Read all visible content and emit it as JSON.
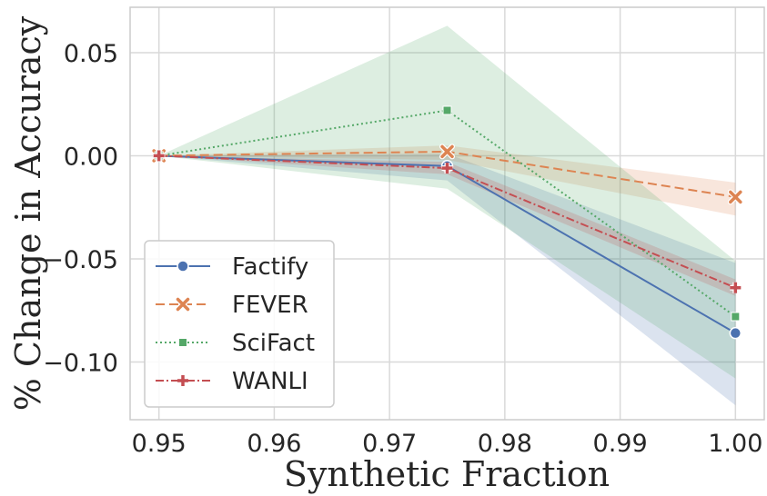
{
  "chart_data": {
    "type": "line",
    "title": "",
    "xlabel": "Synthetic Fraction",
    "ylabel": "% Change in Accuracy",
    "x": [
      0.95,
      0.975,
      1.0
    ],
    "xlim": [
      0.9475,
      1.0025
    ],
    "ylim": [
      -0.128,
      0.072
    ],
    "xticks": [
      "0.95",
      "0.96",
      "0.97",
      "0.98",
      "0.99",
      "1.00"
    ],
    "yticks": [
      "0.05",
      "0.00",
      "−0.05",
      "−0.10"
    ],
    "grid": true,
    "legend_position": "lower-left",
    "series": [
      {
        "name": "Factify",
        "color": "#4c72b0",
        "marker": "circle",
        "dash": "",
        "values": [
          0.0,
          -0.005,
          -0.086
        ],
        "band_low": [
          0.0,
          -0.012,
          -0.121
        ],
        "band_high": [
          0.0,
          0.001,
          -0.052
        ]
      },
      {
        "name": "FEVER",
        "color": "#dd8452",
        "marker": "x",
        "dash": "10,5",
        "values": [
          0.0,
          0.002,
          -0.02
        ],
        "band_low": [
          0.0,
          -0.002,
          -0.029
        ],
        "band_high": [
          0.0,
          0.005,
          -0.013
        ]
      },
      {
        "name": "SciFact",
        "color": "#55a868",
        "marker": "square",
        "dash": "2,3",
        "values": [
          0.0,
          0.022,
          -0.078
        ],
        "band_low": [
          0.0,
          -0.016,
          -0.108
        ],
        "band_high": [
          0.0,
          0.063,
          -0.051
        ]
      },
      {
        "name": "WANLI",
        "color": "#c44e52",
        "marker": "plus",
        "dash": "9,3,2,3",
        "values": [
          0.0,
          -0.006,
          -0.064
        ],
        "band_low": [
          0.0,
          -0.009,
          -0.068
        ],
        "band_high": [
          0.0,
          -0.003,
          -0.06
        ]
      }
    ]
  }
}
